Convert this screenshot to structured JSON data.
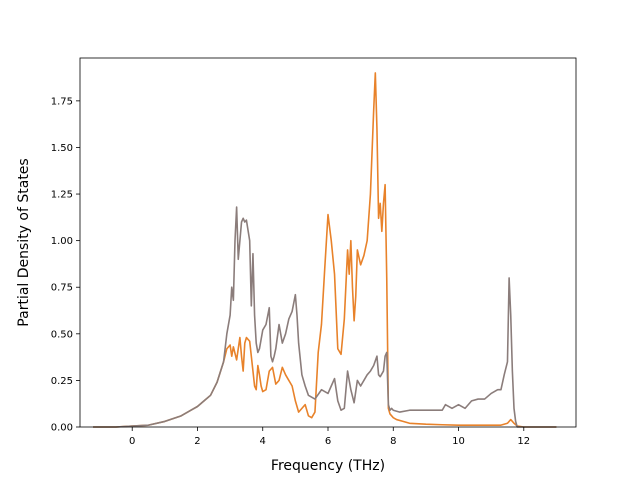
{
  "chart_data": {
    "type": "line",
    "title": "",
    "xlabel": "Frequency (THz)",
    "ylabel": "Partial Density of States",
    "xlim": [
      -1.6,
      13.6
    ],
    "ylim": [
      0.0,
      1.98
    ],
    "xticks": [
      0,
      2,
      4,
      6,
      8,
      10,
      12
    ],
    "xtick_labels": [
      "0",
      "2",
      "4",
      "6",
      "8",
      "10",
      "12"
    ],
    "yticks": [
      0.0,
      0.25,
      0.5,
      0.75,
      1.0,
      1.25,
      1.5,
      1.75
    ],
    "ytick_labels": [
      "0.00",
      "0.25",
      "0.50",
      "0.75",
      "1.00",
      "1.25",
      "1.50",
      "1.75"
    ],
    "grid": false,
    "legend": "none",
    "series": [
      {
        "color": "#e8822a",
        "x": [
          -1.2,
          -0.5,
          0.0,
          0.5,
          1.0,
          1.5,
          1.8,
          2.0,
          2.2,
          2.4,
          2.6,
          2.8,
          2.9,
          3.0,
          3.05,
          3.1,
          3.2,
          3.3,
          3.35,
          3.4,
          3.45,
          3.5,
          3.6,
          3.7,
          3.75,
          3.8,
          3.85,
          3.9,
          3.95,
          4.0,
          4.1,
          4.2,
          4.3,
          4.4,
          4.5,
          4.6,
          4.7,
          4.8,
          4.9,
          5.0,
          5.1,
          5.2,
          5.3,
          5.4,
          5.5,
          5.6,
          5.7,
          5.8,
          5.9,
          6.0,
          6.1,
          6.2,
          6.3,
          6.4,
          6.5,
          6.6,
          6.65,
          6.7,
          6.75,
          6.8,
          6.85,
          6.9,
          7.0,
          7.1,
          7.2,
          7.3,
          7.4,
          7.45,
          7.5,
          7.55,
          7.6,
          7.65,
          7.7,
          7.75,
          7.8,
          7.85,
          7.9,
          7.95,
          8.0,
          8.1,
          8.3,
          8.5,
          9.0,
          9.5,
          10.0,
          10.5,
          11.0,
          11.3,
          11.5,
          11.6,
          11.7,
          11.8,
          12.0,
          13.0
        ],
        "y": [
          0.0,
          0.0,
          0.005,
          0.01,
          0.03,
          0.06,
          0.09,
          0.11,
          0.14,
          0.17,
          0.24,
          0.35,
          0.42,
          0.44,
          0.38,
          0.43,
          0.36,
          0.48,
          0.38,
          0.3,
          0.45,
          0.48,
          0.46,
          0.3,
          0.22,
          0.2,
          0.33,
          0.28,
          0.22,
          0.19,
          0.2,
          0.3,
          0.32,
          0.23,
          0.25,
          0.32,
          0.28,
          0.25,
          0.22,
          0.14,
          0.08,
          0.1,
          0.12,
          0.06,
          0.05,
          0.08,
          0.4,
          0.55,
          0.85,
          1.14,
          1.0,
          0.82,
          0.42,
          0.39,
          0.58,
          0.95,
          0.82,
          1.0,
          0.75,
          0.57,
          0.7,
          0.95,
          0.87,
          0.92,
          1.0,
          1.25,
          1.7,
          1.9,
          1.6,
          1.12,
          1.2,
          1.05,
          1.2,
          1.3,
          0.8,
          0.1,
          0.07,
          0.06,
          0.05,
          0.04,
          0.03,
          0.02,
          0.015,
          0.012,
          0.01,
          0.01,
          0.01,
          0.01,
          0.02,
          0.04,
          0.02,
          0.005,
          0.0,
          0.0
        ]
      },
      {
        "color": "#8b7d7b",
        "x": [
          -1.2,
          -0.5,
          0.0,
          0.5,
          1.0,
          1.5,
          1.8,
          2.0,
          2.2,
          2.4,
          2.6,
          2.8,
          2.9,
          3.0,
          3.05,
          3.1,
          3.15,
          3.2,
          3.25,
          3.3,
          3.35,
          3.4,
          3.45,
          3.5,
          3.6,
          3.65,
          3.7,
          3.75,
          3.8,
          3.85,
          3.9,
          4.0,
          4.1,
          4.2,
          4.25,
          4.3,
          4.35,
          4.4,
          4.5,
          4.55,
          4.6,
          4.7,
          4.8,
          4.9,
          5.0,
          5.05,
          5.1,
          5.2,
          5.3,
          5.4,
          5.6,
          5.8,
          6.0,
          6.1,
          6.2,
          6.3,
          6.4,
          6.5,
          6.6,
          6.7,
          6.8,
          6.9,
          7.0,
          7.1,
          7.2,
          7.3,
          7.4,
          7.5,
          7.55,
          7.6,
          7.7,
          7.75,
          7.8,
          7.85,
          7.9,
          7.95,
          8.0,
          8.2,
          8.5,
          9.0,
          9.5,
          9.6,
          9.8,
          10.0,
          10.2,
          10.4,
          10.6,
          10.8,
          11.0,
          11.2,
          11.3,
          11.4,
          11.5,
          11.55,
          11.6,
          11.65,
          11.7,
          11.75,
          11.8,
          12.0,
          13.0
        ],
        "y": [
          0.0,
          0.0,
          0.005,
          0.01,
          0.03,
          0.06,
          0.09,
          0.11,
          0.14,
          0.17,
          0.24,
          0.35,
          0.5,
          0.6,
          0.75,
          0.68,
          1.0,
          1.18,
          0.9,
          1.0,
          1.1,
          1.12,
          1.1,
          1.11,
          1.0,
          0.65,
          0.93,
          0.6,
          0.45,
          0.4,
          0.42,
          0.52,
          0.55,
          0.64,
          0.38,
          0.35,
          0.38,
          0.42,
          0.55,
          0.5,
          0.45,
          0.5,
          0.58,
          0.62,
          0.71,
          0.6,
          0.45,
          0.28,
          0.22,
          0.17,
          0.15,
          0.2,
          0.18,
          0.22,
          0.26,
          0.14,
          0.09,
          0.1,
          0.3,
          0.2,
          0.13,
          0.25,
          0.22,
          0.25,
          0.28,
          0.3,
          0.33,
          0.38,
          0.28,
          0.27,
          0.3,
          0.38,
          0.4,
          0.12,
          0.09,
          0.1,
          0.09,
          0.08,
          0.09,
          0.09,
          0.09,
          0.12,
          0.1,
          0.12,
          0.1,
          0.14,
          0.15,
          0.15,
          0.18,
          0.2,
          0.2,
          0.28,
          0.35,
          0.8,
          0.6,
          0.3,
          0.1,
          0.03,
          0.0,
          0.0,
          0.0
        ]
      }
    ]
  }
}
